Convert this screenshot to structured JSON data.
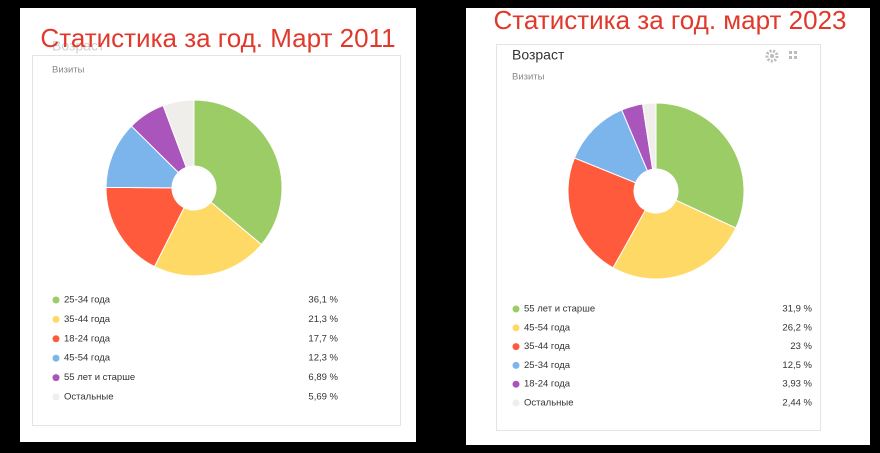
{
  "chart_data": [
    {
      "type": "pie",
      "title": "Статистика за год. Март 2011",
      "card_title": "Возраст",
      "subtitle": "Визиты",
      "categories": [
        "25-34 года",
        "35-44 года",
        "18-24 года",
        "45-54 года",
        "55 лет и старше",
        "Остальные"
      ],
      "values": [
        36.1,
        21.3,
        17.7,
        12.3,
        6.89,
        5.69
      ],
      "value_labels": [
        "36,1 %",
        "21,3 %",
        "17,7 %",
        "12,3 %",
        "6,89 %",
        "5,69 %"
      ],
      "colors": [
        "#9ccc65",
        "#ffd966",
        "#ff5a3c",
        "#7cb5ec",
        "#aa55bb",
        "#efeeea"
      ]
    },
    {
      "type": "pie",
      "title": "Статистика за год. март 2023",
      "card_title": "Возраст",
      "subtitle": "Визиты",
      "categories": [
        "55 лет и старше",
        "45-54 года",
        "35-44 года",
        "25-34 года",
        "18-24 года",
        "Остальные"
      ],
      "values": [
        31.9,
        26.2,
        23,
        12.5,
        3.93,
        2.44
      ],
      "value_labels": [
        "31,9 %",
        "26,2 %",
        "23 %",
        "12,5 %",
        "3,93 %",
        "2,44 %"
      ],
      "colors": [
        "#9ccc65",
        "#ffd966",
        "#ff5a3c",
        "#7cb5ec",
        "#aa55bb",
        "#efeeea"
      ]
    }
  ]
}
